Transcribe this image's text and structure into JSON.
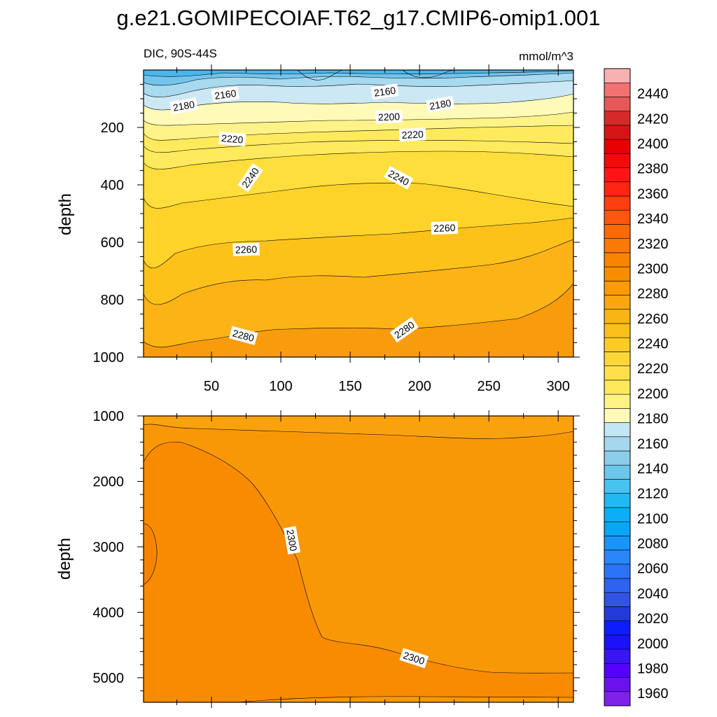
{
  "chart_data": {
    "type": "contour",
    "title": "g.e21.GOMIPECOIAF.T62_g17.CMIP6-omip1.001",
    "subtitle_left": "DIC, 90S-44S",
    "subtitle_right": "mmol/m^3",
    "colorbar": {
      "min": 1950,
      "max": 2460,
      "step": 10,
      "tick_values": [
        "2440",
        "2420",
        "2400",
        "2380",
        "2360",
        "2340",
        "2320",
        "2300",
        "2280",
        "2260",
        "2240",
        "2220",
        "2200",
        "2180",
        "2160",
        "2140",
        "2120",
        "2100",
        "2080",
        "2060",
        "2040",
        "2020",
        "2000",
        "1980",
        "1960"
      ]
    },
    "panels": [
      {
        "name": "upper",
        "ylabel": "depth",
        "ylim": [
          0,
          1000
        ],
        "y_reversed": true,
        "xlim": [
          1,
          311
        ],
        "xticks": [
          "50",
          "100",
          "150",
          "200",
          "250",
          "300"
        ],
        "yticks": [
          "200",
          "400",
          "600",
          "800",
          "1000"
        ],
        "contour_labels": [
          {
            "text": "2160",
            "x": 60,
            "depth": 85
          },
          {
            "text": "2180",
            "x": 30,
            "depth": 125
          },
          {
            "text": "2160",
            "x": 175,
            "depth": 75
          },
          {
            "text": "2180",
            "x": 215,
            "depth": 120
          },
          {
            "text": "2200",
            "x": 178,
            "depth": 163
          },
          {
            "text": "2220",
            "x": 65,
            "depth": 240
          },
          {
            "text": "2220",
            "x": 195,
            "depth": 225
          },
          {
            "text": "2240",
            "x": 78,
            "depth": 375
          },
          {
            "text": "2240",
            "x": 185,
            "depth": 375
          },
          {
            "text": "2260",
            "x": 75,
            "depth": 625
          },
          {
            "text": "2260",
            "x": 218,
            "depth": 550
          },
          {
            "text": "2280",
            "x": 73,
            "depth": 925
          },
          {
            "text": "2280",
            "x": 189,
            "depth": 905
          }
        ]
      },
      {
        "name": "lower",
        "ylabel": "depth",
        "ylim": [
          1000,
          5375
        ],
        "y_reversed": true,
        "xlim": [
          1,
          311
        ],
        "xticks": [],
        "yticks": [
          "1000",
          "2000",
          "3000",
          "4000",
          "5000"
        ],
        "contour_labels": [
          {
            "text": "2300",
            "x": 108,
            "depth": 2900
          },
          {
            "text": "2300",
            "x": 196,
            "depth": 4700
          }
        ]
      }
    ]
  }
}
